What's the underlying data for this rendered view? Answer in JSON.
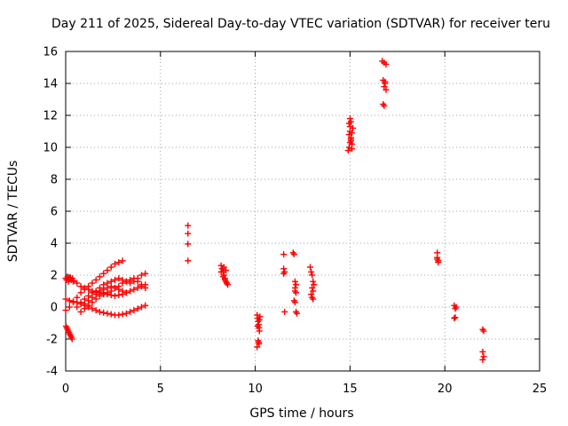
{
  "chart_data": {
    "type": "scatter",
    "title": "Day 211 of 2025, Sidereal Day-to-day VTEC variation (SDTVAR) for receiver teru",
    "xlabel": "GPS time / hours",
    "ylabel": "SDTVAR / TECUs",
    "xlim": [
      0,
      25
    ],
    "ylim": [
      -4,
      16
    ],
    "xticks": [
      "0",
      "5",
      "10",
      "15",
      "20",
      "25"
    ],
    "yticks": [
      "-4",
      "-2",
      "0",
      "2",
      "4",
      "6",
      "8",
      "10",
      "12",
      "14",
      "16"
    ],
    "grid": true,
    "marker": "+",
    "color": "#ff0000",
    "series": [
      {
        "name": "SDTVAR",
        "x": [
          0.0,
          0.05,
          0.1,
          0.15,
          0.2,
          0.25,
          0.3,
          0.35,
          0.4,
          0.02,
          0.06,
          0.1,
          0.14,
          0.18,
          0.22,
          0.26,
          0.3,
          0.34,
          0.0,
          0.2,
          0.4,
          0.6,
          0.8,
          1.0,
          1.2,
          1.4,
          1.6,
          1.8,
          2.0,
          2.2,
          2.4,
          2.6,
          2.8,
          3.0,
          3.2,
          3.4,
          3.6,
          3.8,
          4.0,
          4.2,
          0.0,
          0.2,
          0.4,
          0.6,
          0.8,
          1.0,
          1.2,
          1.4,
          1.6,
          1.8,
          2.0,
          2.2,
          2.4,
          2.6,
          2.8,
          3.0,
          0.2,
          0.4,
          0.6,
          0.8,
          1.0,
          1.2,
          1.4,
          1.6,
          1.8,
          2.0,
          2.2,
          2.4,
          2.6,
          2.8,
          3.0,
          3.2,
          3.4,
          3.6,
          3.8,
          4.0,
          4.2,
          0.6,
          0.8,
          1.0,
          1.2,
          1.4,
          1.6,
          1.8,
          2.0,
          2.2,
          2.4,
          2.6,
          2.8,
          3.0,
          3.2,
          3.4,
          3.6,
          3.8,
          4.0,
          4.2,
          0.8,
          1.0,
          1.2,
          1.4,
          1.6,
          1.8,
          2.0,
          2.2,
          2.4,
          2.6,
          2.8,
          3.0,
          3.2,
          3.4,
          3.6,
          3.8,
          4.0,
          4.2,
          1.0,
          1.2,
          1.4,
          1.6,
          1.8,
          2.0,
          2.2,
          2.4,
          2.6,
          2.8,
          3.0,
          3.2,
          6.45,
          6.45,
          6.45,
          6.45,
          8.2,
          8.25,
          8.3,
          8.35,
          8.4,
          8.45,
          8.5,
          8.55,
          8.2,
          8.3,
          8.4,
          8.5,
          8.35,
          8.45,
          10.1,
          10.12,
          10.15,
          10.18,
          10.2,
          10.22,
          10.25,
          10.15,
          10.2,
          10.1,
          10.18,
          10.22,
          10.12,
          11.5,
          11.5,
          11.5,
          11.55,
          11.55,
          12.0,
          12.05,
          12.1,
          12.15,
          12.1,
          12.05,
          12.1,
          12.15,
          12.2,
          12.1,
          12.15,
          12.9,
          12.95,
          13.0,
          13.05,
          13.1,
          13.0,
          13.05,
          12.95,
          13.0,
          13.05,
          14.9,
          14.95,
          15.0,
          15.05,
          15.1,
          15.15,
          14.95,
          15.0,
          15.05,
          15.1,
          15.0,
          15.05,
          14.95,
          15.1,
          15.0,
          15.05,
          16.7,
          16.8,
          16.9,
          16.75,
          16.85,
          16.8,
          16.9,
          16.75,
          16.8,
          16.85,
          19.6,
          19.6,
          19.65,
          19.65,
          19.6,
          20.5,
          20.55,
          20.6,
          20.5,
          20.55,
          22.0,
          22.05,
          22.0,
          22.05,
          22.0
        ],
        "y": [
          1.8,
          1.7,
          1.9,
          1.6,
          1.75,
          1.85,
          1.7,
          1.8,
          1.65,
          -1.2,
          -1.3,
          -1.4,
          -1.5,
          -1.6,
          -1.7,
          -1.8,
          -1.9,
          -2.0,
          0.5,
          0.4,
          0.35,
          0.3,
          0.2,
          0.1,
          0.0,
          -0.1,
          -0.2,
          -0.3,
          -0.35,
          -0.4,
          -0.45,
          -0.5,
          -0.5,
          -0.45,
          -0.4,
          -0.3,
          -0.2,
          -0.1,
          0.0,
          0.1,
          -0.2,
          0.0,
          0.3,
          0.6,
          0.9,
          1.1,
          1.3,
          1.5,
          1.7,
          1.9,
          2.1,
          2.3,
          2.5,
          2.7,
          2.8,
          2.9,
          1.8,
          1.6,
          1.5,
          1.3,
          1.2,
          1.1,
          1.0,
          0.95,
          0.9,
          0.85,
          0.8,
          0.75,
          0.7,
          0.75,
          0.8,
          0.9,
          1.0,
          1.1,
          1.2,
          1.3,
          1.4,
          0.0,
          0.3,
          0.5,
          0.7,
          0.9,
          1.0,
          1.2,
          1.4,
          1.5,
          1.6,
          1.7,
          1.8,
          1.7,
          1.6,
          1.5,
          1.6,
          1.8,
          2.0,
          2.1,
          -0.3,
          -0.1,
          0.1,
          0.3,
          0.5,
          0.7,
          0.8,
          0.9,
          1.0,
          1.2,
          1.3,
          1.5,
          1.6,
          1.7,
          1.8,
          1.6,
          1.4,
          1.2,
          0.2,
          0.4,
          0.6,
          0.8,
          1.0,
          1.1,
          1.2,
          1.3,
          1.2,
          1.1,
          1.0,
          0.9,
          5.1,
          4.6,
          3.95,
          2.9,
          2.6,
          2.4,
          2.2,
          2.0,
          1.8,
          1.6,
          1.5,
          1.4,
          2.2,
          1.9,
          1.7,
          1.5,
          2.5,
          2.3,
          -0.5,
          -0.7,
          -0.9,
          -1.1,
          -1.3,
          -1.5,
          -0.6,
          -2.1,
          -2.3,
          -2.5,
          -2.2,
          -0.8,
          -1.2,
          3.3,
          2.4,
          2.1,
          -0.3,
          2.2,
          3.4,
          3.3,
          1.6,
          1.4,
          1.0,
          0.4,
          0.3,
          -0.3,
          -0.4,
          1.2,
          0.9,
          2.5,
          2.2,
          2.0,
          1.6,
          1.4,
          1.2,
          1.0,
          0.8,
          0.6,
          0.5,
          9.8,
          10.0,
          10.3,
          10.6,
          10.9,
          11.2,
          11.5,
          11.0,
          10.5,
          10.2,
          11.3,
          11.6,
          10.8,
          9.9,
          11.8,
          10.4,
          15.4,
          15.3,
          15.2,
          14.2,
          14.0,
          13.8,
          13.6,
          12.7,
          12.6,
          14.1,
          3.4,
          3.1,
          2.9,
          2.8,
          3.0,
          0.1,
          -0.1,
          0.0,
          -0.7,
          -0.65,
          -1.4,
          -1.5,
          -2.8,
          -3.1,
          -3.3
        ]
      }
    ]
  }
}
